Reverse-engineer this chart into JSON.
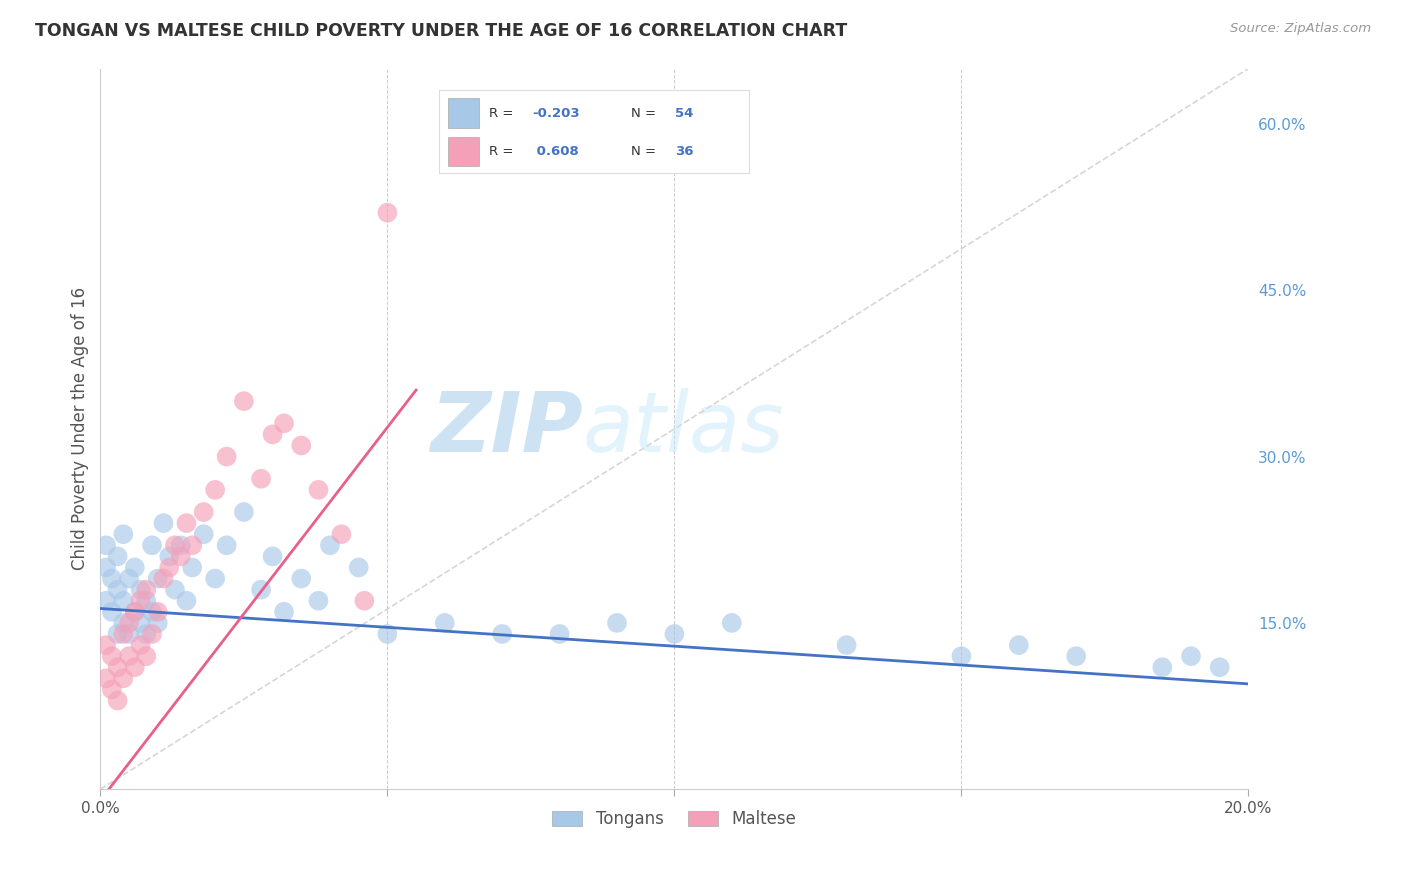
{
  "title": "TONGAN VS MALTESE CHILD POVERTY UNDER THE AGE OF 16 CORRELATION CHART",
  "source": "Source: ZipAtlas.com",
  "ylabel": "Child Poverty Under the Age of 16",
  "xlim": [
    0.0,
    0.2
  ],
  "ylim": [
    0.0,
    0.65
  ],
  "y_ticks_right": [
    0.15,
    0.3,
    0.45,
    0.6
  ],
  "y_tick_labels_right": [
    "15.0%",
    "30.0%",
    "45.0%",
    "60.0%"
  ],
  "watermark_zip": "ZIP",
  "watermark_atlas": "atlas",
  "color_tongan": "#a8c8e8",
  "color_maltese": "#f4a0b8",
  "color_tongan_line": "#4472c4",
  "color_maltese_line": "#e8608a",
  "color_diagonal": "#cccccc",
  "tongan_R": "-0.203",
  "tongan_N": "54",
  "maltese_R": "0.608",
  "maltese_N": "36",
  "tongan_scatter_x": [
    0.001,
    0.001,
    0.001,
    0.002,
    0.002,
    0.003,
    0.003,
    0.003,
    0.004,
    0.004,
    0.004,
    0.005,
    0.005,
    0.006,
    0.006,
    0.007,
    0.007,
    0.008,
    0.008,
    0.009,
    0.009,
    0.01,
    0.01,
    0.011,
    0.012,
    0.013,
    0.014,
    0.015,
    0.016,
    0.018,
    0.02,
    0.022,
    0.025,
    0.028,
    0.03,
    0.032,
    0.035,
    0.038,
    0.04,
    0.045,
    0.05,
    0.06,
    0.07,
    0.08,
    0.09,
    0.1,
    0.11,
    0.13,
    0.15,
    0.16,
    0.17,
    0.185,
    0.19,
    0.195
  ],
  "tongan_scatter_y": [
    0.17,
    0.2,
    0.22,
    0.16,
    0.19,
    0.14,
    0.18,
    0.21,
    0.15,
    0.17,
    0.23,
    0.14,
    0.19,
    0.16,
    0.2,
    0.15,
    0.18,
    0.14,
    0.17,
    0.16,
    0.22,
    0.15,
    0.19,
    0.24,
    0.21,
    0.18,
    0.22,
    0.17,
    0.2,
    0.23,
    0.19,
    0.22,
    0.25,
    0.18,
    0.21,
    0.16,
    0.19,
    0.17,
    0.22,
    0.2,
    0.14,
    0.15,
    0.14,
    0.14,
    0.15,
    0.14,
    0.15,
    0.13,
    0.12,
    0.13,
    0.12,
    0.11,
    0.12,
    0.11
  ],
  "maltese_scatter_x": [
    0.001,
    0.001,
    0.002,
    0.002,
    0.003,
    0.003,
    0.004,
    0.004,
    0.005,
    0.005,
    0.006,
    0.006,
    0.007,
    0.007,
    0.008,
    0.008,
    0.009,
    0.01,
    0.011,
    0.012,
    0.013,
    0.014,
    0.015,
    0.016,
    0.018,
    0.02,
    0.022,
    0.025,
    0.028,
    0.03,
    0.032,
    0.035,
    0.038,
    0.042,
    0.046,
    0.05
  ],
  "maltese_scatter_y": [
    0.1,
    0.13,
    0.09,
    0.12,
    0.08,
    0.11,
    0.1,
    0.14,
    0.12,
    0.15,
    0.11,
    0.16,
    0.13,
    0.17,
    0.12,
    0.18,
    0.14,
    0.16,
    0.19,
    0.2,
    0.22,
    0.21,
    0.24,
    0.22,
    0.25,
    0.27,
    0.3,
    0.35,
    0.28,
    0.32,
    0.33,
    0.31,
    0.27,
    0.23,
    0.17,
    0.52
  ]
}
